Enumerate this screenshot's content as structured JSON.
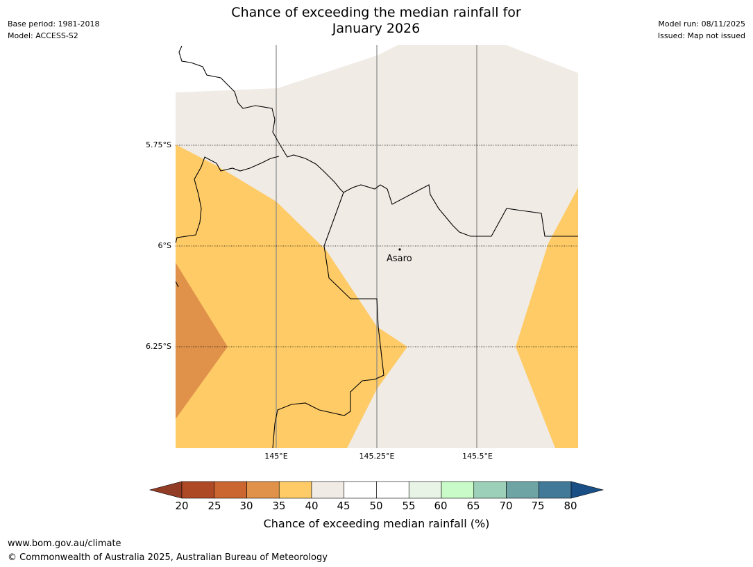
{
  "header": {
    "title_line1": "Chance of exceeding the median rainfall for",
    "title_line2": "January 2026",
    "base_period": "Base period: 1981-2018",
    "model": "Model: ACCESS-S2",
    "model_run": "Model run: 08/11/2025",
    "issued": "Issued: Map not issued"
  },
  "map": {
    "lat_labels": [
      "5.75°S",
      "6°S",
      "6.25°S"
    ],
    "lon_labels": [
      "145°E",
      "145.25°E",
      "145.5°E"
    ],
    "place": "Asaro",
    "category_colors": {
      "20-25": "#b04a25",
      "30-35": "#e0924a",
      "35-40": "#fecb66",
      "40-45": "#f0ebe5"
    }
  },
  "colorbar": {
    "ticks": [
      "20",
      "25",
      "30",
      "35",
      "40",
      "45",
      "50",
      "55",
      "60",
      "65",
      "70",
      "75",
      "80"
    ],
    "colors": [
      "#ae4925",
      "#cb6631",
      "#e0924a",
      "#fecb66",
      "#f0ebe5",
      "#ffffff",
      "#ffffff",
      "#e8f5e6",
      "#c8fbc7",
      "#9dd0b8",
      "#6fa4a5",
      "#427998"
    ],
    "low_extend_color": "#923c26",
    "high_extend_color": "#1a4f86",
    "label": "Chance of exceeding median rainfall (%)"
  },
  "footer": {
    "url": "www.bom.gov.au/climate",
    "copyright": "© Commonwealth of Australia 2025, Australian Bureau of Meteorology"
  }
}
